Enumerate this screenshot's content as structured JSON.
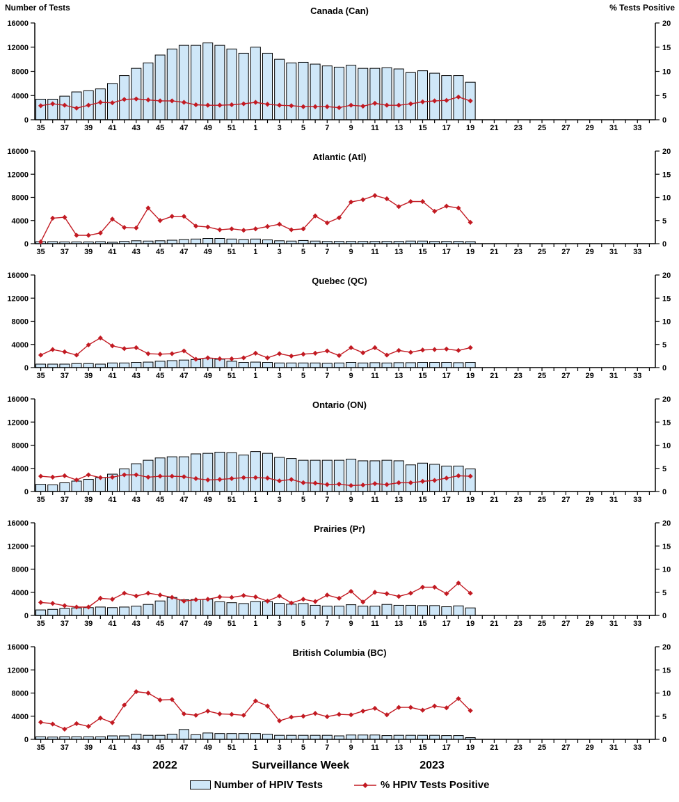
{
  "header": {
    "left_axis_title": "Number of Tests",
    "right_axis_title": "% Tests Positive"
  },
  "footer": {
    "year_left": "2022",
    "x_axis_label": "Surveillance Week",
    "year_right": "2023"
  },
  "legend": {
    "bars_label": "Number of HPIV Tests",
    "line_label": "% HPIV Tests Positive"
  },
  "colors": {
    "bar_fill": "#cfe7f8",
    "bar_border": "#000000",
    "line": "#c21a22",
    "axis": "#000000"
  },
  "axes": {
    "weeks": [
      35,
      36,
      37,
      38,
      39,
      40,
      41,
      42,
      43,
      44,
      45,
      46,
      47,
      48,
      49,
      50,
      51,
      52,
      1,
      2,
      3,
      4,
      5,
      6,
      7,
      8,
      9,
      10,
      11,
      12,
      13,
      14,
      15,
      16,
      17,
      18,
      19,
      20,
      21,
      22,
      23,
      24,
      25,
      26,
      27,
      28,
      29,
      30,
      31,
      32,
      33,
      34
    ],
    "x_tick_labels": [
      35,
      37,
      39,
      41,
      43,
      45,
      47,
      49,
      51,
      1,
      3,
      5,
      7,
      9,
      11,
      13,
      15,
      17,
      19,
      21,
      23,
      25,
      27,
      29,
      31,
      33
    ],
    "left_ylim": [
      0,
      16000
    ],
    "left_yticks": [
      0,
      4000,
      8000,
      12000,
      16000
    ],
    "right_ylim": [
      0,
      20
    ],
    "right_yticks": [
      0,
      5,
      10,
      15,
      20
    ]
  },
  "chart_data": [
    {
      "type": "bar+line",
      "title": "Canada (Can)",
      "data_weeks": [
        35,
        36,
        37,
        38,
        39,
        40,
        41,
        42,
        43,
        44,
        45,
        46,
        47,
        48,
        49,
        50,
        51,
        52,
        1,
        2,
        3,
        4,
        5,
        6,
        7,
        8,
        9,
        10,
        11,
        12,
        13,
        14,
        15,
        16,
        17,
        18,
        19
      ],
      "tests": [
        3400,
        3400,
        3900,
        4600,
        4800,
        5100,
        6000,
        7300,
        8500,
        9400,
        10700,
        11700,
        12300,
        12300,
        12700,
        12300,
        11700,
        11000,
        12000,
        11000,
        10000,
        9400,
        9500,
        9200,
        8900,
        8700,
        9000,
        8500,
        8500,
        8600,
        8400,
        7800,
        8100,
        7700,
        7300,
        7300,
        6200
      ],
      "pct_positive": [
        2.9,
        3.3,
        3.0,
        2.4,
        3.0,
        3.6,
        3.5,
        4.2,
        4.3,
        4.1,
        3.9,
        3.9,
        3.6,
        3.1,
        3.0,
        3.0,
        3.1,
        3.3,
        3.6,
        3.2,
        3.0,
        2.9,
        2.7,
        2.7,
        2.7,
        2.5,
        3.0,
        2.8,
        3.4,
        3.0,
        3.0,
        3.3,
        3.7,
        3.9,
        4.0,
        4.7,
        3.9
      ]
    },
    {
      "type": "bar+line",
      "title": "Atlantic (Atl)",
      "data_weeks": [
        35,
        36,
        37,
        38,
        39,
        40,
        41,
        42,
        43,
        44,
        45,
        46,
        47,
        48,
        49,
        50,
        51,
        52,
        1,
        2,
        3,
        4,
        5,
        6,
        7,
        8,
        9,
        10,
        11,
        12,
        13,
        14,
        15,
        16,
        17,
        18,
        19
      ],
      "tests": [
        350,
        350,
        300,
        300,
        300,
        350,
        250,
        400,
        500,
        450,
        500,
        600,
        700,
        800,
        900,
        900,
        800,
        700,
        800,
        650,
        500,
        450,
        550,
        450,
        400,
        400,
        400,
        400,
        400,
        400,
        400,
        450,
        450,
        400,
        400,
        400,
        350
      ],
      "pct_positive": [
        0.4,
        5.5,
        5.7,
        1.8,
        1.8,
        2.3,
        5.3,
        3.5,
        3.4,
        7.7,
        5.0,
        5.9,
        5.9,
        3.8,
        3.6,
        3.0,
        3.2,
        2.9,
        3.2,
        3.7,
        4.2,
        3.0,
        3.2,
        6.0,
        4.5,
        5.6,
        9.0,
        9.5,
        10.4,
        9.7,
        8.0,
        9.1,
        9.1,
        7.0,
        8.1,
        7.7,
        4.6
      ]
    },
    {
      "type": "bar+line",
      "title": "Quebec (QC)",
      "data_weeks": [
        35,
        36,
        37,
        38,
        39,
        40,
        41,
        42,
        43,
        44,
        45,
        46,
        47,
        48,
        49,
        50,
        51,
        52,
        1,
        2,
        3,
        4,
        5,
        6,
        7,
        8,
        9,
        10,
        11,
        12,
        13,
        14,
        15,
        16,
        17,
        18,
        19
      ],
      "tests": [
        600,
        600,
        600,
        700,
        700,
        600,
        800,
        800,
        900,
        950,
        1100,
        1200,
        1300,
        1400,
        1600,
        1450,
        1100,
        900,
        950,
        900,
        800,
        800,
        800,
        800,
        750,
        800,
        900,
        800,
        850,
        800,
        850,
        850,
        900,
        900,
        900,
        850,
        900
      ],
      "pct_positive": [
        2.7,
        3.9,
        3.4,
        2.7,
        4.9,
        6.4,
        4.7,
        4.1,
        4.3,
        3.0,
        2.9,
        3.0,
        3.6,
        1.8,
        2.1,
        1.9,
        1.9,
        2.1,
        3.1,
        2.1,
        3.0,
        2.5,
        2.9,
        3.1,
        3.6,
        2.6,
        4.3,
        3.2,
        4.3,
        2.7,
        3.7,
        3.3,
        3.8,
        3.9,
        4.0,
        3.7,
        4.3
      ]
    },
    {
      "type": "bar+line",
      "title": "Ontario (ON)",
      "data_weeks": [
        35,
        36,
        37,
        38,
        39,
        40,
        41,
        42,
        43,
        44,
        45,
        46,
        47,
        48,
        49,
        50,
        51,
        52,
        1,
        2,
        3,
        4,
        5,
        6,
        7,
        8,
        9,
        10,
        11,
        12,
        13,
        14,
        15,
        16,
        17,
        18,
        19
      ],
      "tests": [
        1250,
        1150,
        1500,
        1800,
        2100,
        2400,
        3000,
        3900,
        4800,
        5400,
        5800,
        6000,
        6000,
        6500,
        6600,
        6800,
        6700,
        6300,
        6900,
        6600,
        5900,
        5700,
        5400,
        5400,
        5400,
        5400,
        5600,
        5300,
        5300,
        5400,
        5300,
        4600,
        4900,
        4700,
        4400,
        4400,
        3900
      ],
      "pct_positive": [
        3.3,
        3.1,
        3.4,
        2.5,
        3.6,
        3.0,
        3.1,
        3.6,
        3.6,
        3.1,
        3.3,
        3.3,
        3.2,
        2.8,
        2.5,
        2.6,
        2.8,
        3.0,
        3.0,
        2.9,
        2.3,
        2.6,
        1.9,
        1.8,
        1.5,
        1.6,
        1.3,
        1.4,
        1.7,
        1.5,
        1.9,
        1.9,
        2.2,
        2.4,
        2.9,
        3.4,
        3.3
      ]
    },
    {
      "type": "bar+line",
      "title": "Prairies (Pr)",
      "data_weeks": [
        35,
        36,
        37,
        38,
        39,
        40,
        41,
        42,
        43,
        44,
        45,
        46,
        47,
        48,
        49,
        50,
        51,
        52,
        1,
        2,
        3,
        4,
        5,
        6,
        7,
        8,
        9,
        10,
        11,
        12,
        13,
        14,
        15,
        16,
        17,
        18,
        19
      ],
      "tests": [
        950,
        1050,
        1200,
        1300,
        1350,
        1450,
        1350,
        1450,
        1600,
        1900,
        2500,
        3100,
        2700,
        2750,
        2800,
        2350,
        2200,
        2050,
        2400,
        2400,
        2100,
        1950,
        2050,
        1750,
        1600,
        1600,
        1850,
        1600,
        1600,
        1900,
        1750,
        1750,
        1700,
        1700,
        1500,
        1650,
        1300
      ],
      "pct_positive": [
        2.8,
        2.6,
        2.1,
        1.8,
        1.8,
        3.7,
        3.5,
        4.8,
        4.2,
        4.8,
        4.4,
        3.9,
        3.1,
        3.4,
        3.5,
        4.0,
        3.9,
        4.3,
        4.0,
        3.1,
        4.2,
        2.7,
        3.5,
        3.0,
        4.4,
        3.7,
        5.2,
        2.9,
        5.0,
        4.7,
        4.1,
        4.8,
        6.1,
        6.1,
        4.7,
        7.0,
        4.8
      ]
    },
    {
      "type": "bar+line",
      "title": "British Columbia (BC)",
      "data_weeks": [
        35,
        36,
        37,
        38,
        39,
        40,
        41,
        42,
        43,
        44,
        45,
        46,
        47,
        48,
        49,
        50,
        51,
        52,
        1,
        2,
        3,
        4,
        5,
        6,
        7,
        8,
        9,
        10,
        11,
        12,
        13,
        14,
        15,
        16,
        17,
        18,
        19
      ],
      "tests": [
        450,
        400,
        450,
        450,
        450,
        450,
        600,
        600,
        900,
        700,
        700,
        900,
        1700,
        800,
        1100,
        1000,
        1000,
        1000,
        1000,
        900,
        700,
        700,
        700,
        700,
        700,
        600,
        750,
        750,
        750,
        650,
        700,
        700,
        700,
        700,
        650,
        650,
        300
      ],
      "pct_positive": [
        3.7,
        3.3,
        2.2,
        3.4,
        2.8,
        4.6,
        3.6,
        7.4,
        10.3,
        10.0,
        8.5,
        8.6,
        5.5,
        5.2,
        6.1,
        5.5,
        5.4,
        5.2,
        8.3,
        7.2,
        4.0,
        4.8,
        5.0,
        5.6,
        4.9,
        5.4,
        5.3,
        6.1,
        6.7,
        5.3,
        6.9,
        6.9,
        6.3,
        7.2,
        6.8,
        8.8,
        6.2
      ]
    }
  ]
}
